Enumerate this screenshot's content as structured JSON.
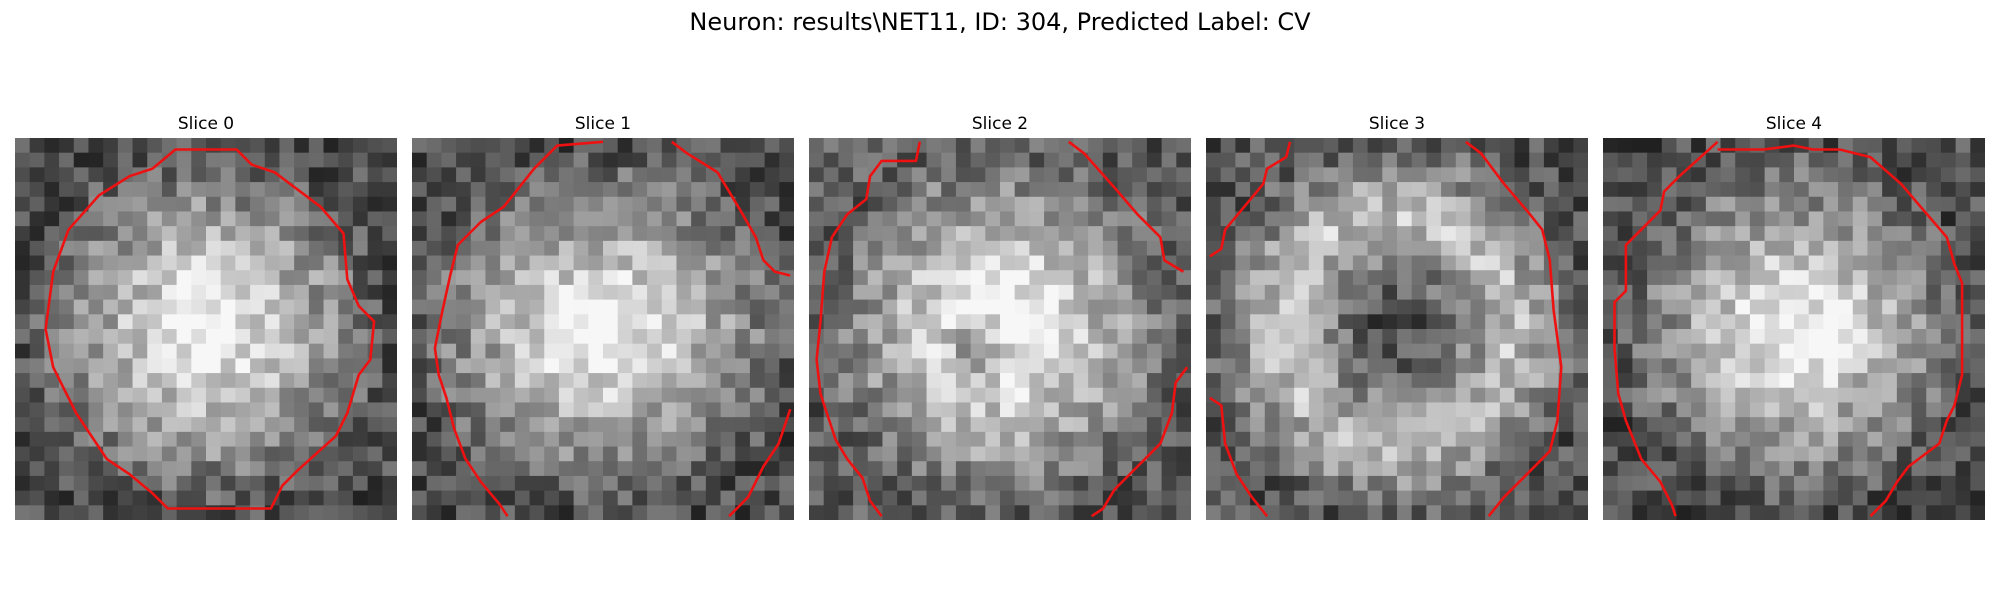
{
  "figure": {
    "title": "Neuron: results\\NET11, ID: 304, Predicted Label: CV"
  },
  "colors": {
    "contour": "#ee1111",
    "background": "#ffffff"
  },
  "panels": [
    {
      "title": "Slice 0",
      "seed": 11,
      "blob": "round",
      "contour": [
        [
          0.42,
          0.03
        ],
        [
          0.58,
          0.03
        ],
        [
          0.62,
          0.07
        ],
        [
          0.68,
          0.09
        ],
        [
          0.8,
          0.18
        ],
        [
          0.86,
          0.25
        ],
        [
          0.87,
          0.37
        ],
        [
          0.9,
          0.44
        ],
        [
          0.94,
          0.48
        ],
        [
          0.93,
          0.58
        ],
        [
          0.9,
          0.62
        ],
        [
          0.87,
          0.72
        ],
        [
          0.84,
          0.78
        ],
        [
          0.74,
          0.87
        ],
        [
          0.7,
          0.91
        ],
        [
          0.67,
          0.97
        ],
        [
          0.4,
          0.97
        ],
        [
          0.36,
          0.93
        ],
        [
          0.3,
          0.88
        ],
        [
          0.24,
          0.84
        ],
        [
          0.2,
          0.78
        ],
        [
          0.16,
          0.72
        ],
        [
          0.12,
          0.64
        ],
        [
          0.1,
          0.6
        ],
        [
          0.08,
          0.5
        ],
        [
          0.1,
          0.35
        ],
        [
          0.14,
          0.24
        ],
        [
          0.22,
          0.15
        ],
        [
          0.3,
          0.1
        ],
        [
          0.36,
          0.08
        ]
      ]
    },
    {
      "title": "Slice 1",
      "seed": 23,
      "blob": "wide",
      "open": [
        [
          [
            0.5,
            0.01
          ],
          [
            0.38,
            0.02
          ],
          [
            0.32,
            0.08
          ],
          [
            0.28,
            0.13
          ],
          [
            0.24,
            0.18
          ],
          [
            0.18,
            0.22
          ],
          [
            0.12,
            0.28
          ],
          [
            0.1,
            0.36
          ],
          [
            0.08,
            0.45
          ],
          [
            0.06,
            0.55
          ],
          [
            0.07,
            0.62
          ],
          [
            0.09,
            0.68
          ],
          [
            0.11,
            0.76
          ],
          [
            0.14,
            0.84
          ],
          [
            0.18,
            0.9
          ],
          [
            0.23,
            0.96
          ],
          [
            0.25,
            0.99
          ]
        ],
        [
          [
            0.68,
            0.01
          ],
          [
            0.72,
            0.04
          ],
          [
            0.8,
            0.09
          ],
          [
            0.86,
            0.19
          ],
          [
            0.9,
            0.26
          ],
          [
            0.92,
            0.32
          ],
          [
            0.95,
            0.35
          ],
          [
            0.99,
            0.36
          ]
        ],
        [
          [
            0.83,
            0.99
          ],
          [
            0.88,
            0.94
          ],
          [
            0.92,
            0.86
          ],
          [
            0.96,
            0.8
          ],
          [
            0.98,
            0.74
          ],
          [
            0.99,
            0.71
          ]
        ]
      ]
    },
    {
      "title": "Slice 2",
      "seed": 37,
      "blob": "crescent",
      "open": [
        [
          [
            0.29,
            0.01
          ],
          [
            0.28,
            0.06
          ],
          [
            0.19,
            0.06
          ],
          [
            0.16,
            0.1
          ],
          [
            0.15,
            0.16
          ],
          [
            0.1,
            0.2
          ],
          [
            0.06,
            0.26
          ],
          [
            0.04,
            0.35
          ],
          [
            0.03,
            0.48
          ],
          [
            0.02,
            0.58
          ],
          [
            0.03,
            0.67
          ],
          [
            0.05,
            0.73
          ],
          [
            0.07,
            0.79
          ],
          [
            0.1,
            0.84
          ],
          [
            0.14,
            0.89
          ],
          [
            0.16,
            0.95
          ],
          [
            0.19,
            0.99
          ]
        ],
        [
          [
            0.68,
            0.01
          ],
          [
            0.72,
            0.04
          ],
          [
            0.8,
            0.13
          ],
          [
            0.86,
            0.2
          ],
          [
            0.92,
            0.26
          ],
          [
            0.93,
            0.32
          ],
          [
            0.98,
            0.35
          ]
        ],
        [
          [
            0.99,
            0.6
          ],
          [
            0.96,
            0.64
          ],
          [
            0.95,
            0.72
          ],
          [
            0.92,
            0.8
          ],
          [
            0.86,
            0.86
          ],
          [
            0.8,
            0.92
          ],
          [
            0.77,
            0.97
          ],
          [
            0.74,
            0.99
          ]
        ]
      ]
    },
    {
      "title": "Slice 3",
      "seed": 53,
      "blob": "ring",
      "open": [
        [
          [
            0.22,
            0.01
          ],
          [
            0.21,
            0.05
          ],
          [
            0.16,
            0.08
          ],
          [
            0.15,
            0.12
          ],
          [
            0.1,
            0.18
          ],
          [
            0.05,
            0.24
          ],
          [
            0.04,
            0.29
          ],
          [
            0.01,
            0.31
          ]
        ],
        [
          [
            0.68,
            0.01
          ],
          [
            0.72,
            0.04
          ],
          [
            0.78,
            0.12
          ],
          [
            0.84,
            0.19
          ],
          [
            0.88,
            0.24
          ],
          [
            0.9,
            0.32
          ],
          [
            0.91,
            0.45
          ],
          [
            0.93,
            0.6
          ],
          [
            0.92,
            0.74
          ],
          [
            0.9,
            0.82
          ],
          [
            0.84,
            0.88
          ],
          [
            0.78,
            0.94
          ],
          [
            0.74,
            0.99
          ]
        ],
        [
          [
            0.01,
            0.68
          ],
          [
            0.04,
            0.7
          ],
          [
            0.05,
            0.8
          ],
          [
            0.08,
            0.88
          ],
          [
            0.12,
            0.94
          ],
          [
            0.16,
            0.99
          ]
        ]
      ]
    },
    {
      "title": "Slice 4",
      "seed": 71,
      "blob": "round2",
      "contour": [
        [
          0.3,
          0.01
        ],
        [
          0.2,
          0.1
        ],
        [
          0.16,
          0.14
        ],
        [
          0.15,
          0.19
        ],
        [
          0.1,
          0.24
        ],
        [
          0.06,
          0.28
        ],
        [
          0.06,
          0.4
        ],
        [
          0.03,
          0.43
        ],
        [
          0.03,
          0.55
        ],
        [
          0.04,
          0.67
        ],
        [
          0.06,
          0.74
        ],
        [
          0.1,
          0.84
        ],
        [
          0.15,
          0.9
        ],
        [
          0.18,
          0.96
        ],
        [
          0.19,
          0.99
        ]
      ],
      "open": [
        [
          [
            0.3,
            0.03
          ],
          [
            0.42,
            0.03
          ],
          [
            0.5,
            0.02
          ],
          [
            0.55,
            0.03
          ],
          [
            0.62,
            0.03
          ],
          [
            0.7,
            0.05
          ],
          [
            0.78,
            0.12
          ],
          [
            0.84,
            0.19
          ],
          [
            0.9,
            0.26
          ],
          [
            0.92,
            0.33
          ],
          [
            0.94,
            0.38
          ],
          [
            0.94,
            0.5
          ],
          [
            0.94,
            0.62
          ],
          [
            0.92,
            0.7
          ],
          [
            0.9,
            0.74
          ],
          [
            0.88,
            0.8
          ],
          [
            0.8,
            0.86
          ],
          [
            0.77,
            0.9
          ],
          [
            0.74,
            0.95
          ],
          [
            0.7,
            0.99
          ]
        ]
      ]
    }
  ]
}
